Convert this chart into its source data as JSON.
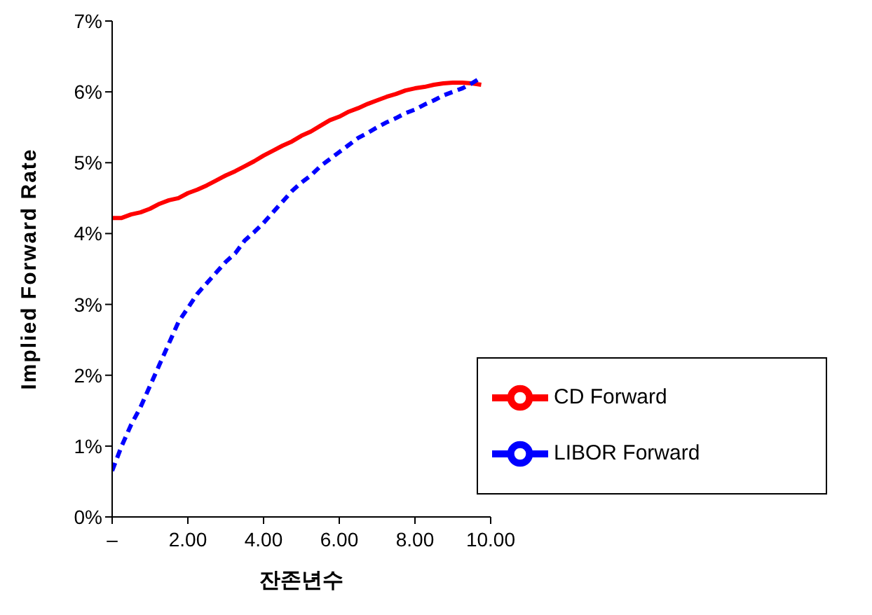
{
  "chart_data": {
    "type": "line",
    "xlabel": "잔존년수",
    "ylabel": "Implied Forward Rate",
    "xlim": [
      0,
      10
    ],
    "xticks": [
      {
        "value": 0,
        "label": "–"
      },
      {
        "value": 2,
        "label": "2.00"
      },
      {
        "value": 4,
        "label": "4.00"
      },
      {
        "value": 6,
        "label": "6.00"
      },
      {
        "value": 8,
        "label": "8.00"
      },
      {
        "value": 10,
        "label": "10.00"
      }
    ],
    "ylim": [
      0,
      7
    ],
    "yticks": [
      {
        "value": 0,
        "label": "0%"
      },
      {
        "value": 1,
        "label": "1%"
      },
      {
        "value": 2,
        "label": "2%"
      },
      {
        "value": 3,
        "label": "3%"
      },
      {
        "value": 4,
        "label": "4%"
      },
      {
        "value": 5,
        "label": "5%"
      },
      {
        "value": 6,
        "label": "6%"
      },
      {
        "value": 7,
        "label": "7%"
      }
    ],
    "grid": false,
    "legend": "bottom right",
    "marker": "none",
    "series": [
      {
        "name": "CD Forward",
        "color": "#ff0000",
        "line_style": "solid",
        "x": [
          0,
          0.25,
          0.5,
          0.75,
          1,
          1.25,
          1.5,
          1.75,
          2,
          2.25,
          2.5,
          2.75,
          3,
          3.25,
          3.5,
          3.75,
          4,
          4.25,
          4.5,
          4.75,
          5,
          5.25,
          5.5,
          5.75,
          6,
          6.25,
          6.5,
          6.75,
          7,
          7.25,
          7.5,
          7.75,
          8,
          8.25,
          8.5,
          8.75,
          9,
          9.25,
          9.5,
          9.75
        ],
        "values": [
          4.22,
          4.22,
          4.27,
          4.3,
          4.35,
          4.42,
          4.47,
          4.5,
          4.57,
          4.62,
          4.68,
          4.75,
          4.82,
          4.88,
          4.95,
          5.02,
          5.1,
          5.17,
          5.24,
          5.3,
          5.38,
          5.44,
          5.52,
          5.6,
          5.65,
          5.72,
          5.77,
          5.83,
          5.88,
          5.93,
          5.97,
          6.02,
          6.05,
          6.07,
          6.1,
          6.12,
          6.13,
          6.13,
          6.12,
          6.1
        ]
      },
      {
        "name": "LIBOR Forward",
        "color": "#0000ff",
        "line_style": "dashed",
        "x": [
          0,
          0.25,
          0.5,
          0.75,
          1,
          1.25,
          1.5,
          1.75,
          2,
          2.25,
          2.5,
          2.75,
          3,
          3.25,
          3.5,
          3.75,
          4,
          4.25,
          4.5,
          4.75,
          5,
          5.25,
          5.5,
          5.75,
          6,
          6.25,
          6.5,
          6.75,
          7,
          7.25,
          7.5,
          7.75,
          8,
          8.25,
          8.5,
          8.75,
          9,
          9.25,
          9.5,
          9.65
        ],
        "values": [
          0.65,
          1.0,
          1.3,
          1.55,
          1.85,
          2.15,
          2.45,
          2.75,
          2.95,
          3.15,
          3.3,
          3.45,
          3.6,
          3.72,
          3.9,
          4.02,
          4.15,
          4.3,
          4.45,
          4.6,
          4.72,
          4.82,
          4.95,
          5.05,
          5.15,
          5.25,
          5.35,
          5.42,
          5.5,
          5.57,
          5.63,
          5.7,
          5.75,
          5.82,
          5.88,
          5.95,
          6.0,
          6.05,
          6.12,
          6.17
        ]
      }
    ]
  }
}
